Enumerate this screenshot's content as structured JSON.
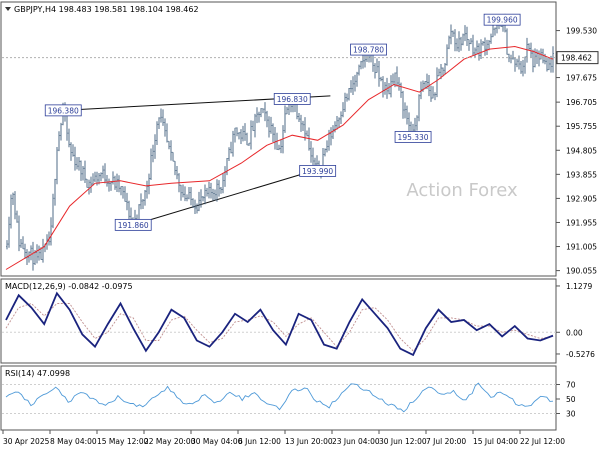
{
  "chart_data": [
    {
      "type": "candlestick",
      "panel": "price",
      "header": "GBPJPY,H4  198.483 198.581 198.104 198.462",
      "watermark": "Action Forex",
      "ylim": [
        190.0,
        200.5
      ],
      "y_ticks": [
        "199.530",
        "198.462",
        "197.675",
        "196.705",
        "195.755",
        "194.805",
        "193.855",
        "192.905",
        "191.955",
        "191.005",
        "190.055"
      ],
      "current_price": "198.462",
      "price_path": [
        {
          "t": "30 Apr 2025",
          "v": 191.0
        },
        {
          "t": "1 May",
          "v": 193.4
        },
        {
          "t": "2 May",
          "v": 191.2
        },
        {
          "t": "5 May",
          "v": 190.4
        },
        {
          "t": "7 May",
          "v": 191.3
        },
        {
          "t": "8 May",
          "v": 195.0
        },
        {
          "t": "9 May",
          "v": 196.38
        },
        {
          "t": "10 May",
          "v": 194.8
        },
        {
          "t": "13 May",
          "v": 193.5
        },
        {
          "t": "15 May",
          "v": 193.9
        },
        {
          "t": "18 May",
          "v": 193.3
        },
        {
          "t": "20 May",
          "v": 191.86
        },
        {
          "t": "22 May",
          "v": 193.2
        },
        {
          "t": "24 May",
          "v": 196.3
        },
        {
          "t": "26 May",
          "v": 194.4
        },
        {
          "t": "28 May",
          "v": 193.0
        },
        {
          "t": "30 May",
          "v": 192.7
        },
        {
          "t": "3 Jun",
          "v": 193.5
        },
        {
          "t": "5 Jun",
          "v": 195.6
        },
        {
          "t": "7 Jun",
          "v": 195.2
        },
        {
          "t": "9 Jun",
          "v": 196.4
        },
        {
          "t": "11 Jun",
          "v": 195.5
        },
        {
          "t": "12 Jun",
          "v": 194.8
        },
        {
          "t": "13 Jun",
          "v": 196.3
        },
        {
          "t": "14 Jun",
          "v": 196.83
        },
        {
          "t": "16 Jun",
          "v": 195.7
        },
        {
          "t": "17 Jun",
          "v": 194.4
        },
        {
          "t": "18 Jun",
          "v": 193.99
        },
        {
          "t": "20 Jun",
          "v": 195.4
        },
        {
          "t": "22 Jun",
          "v": 196.6
        },
        {
          "t": "24 Jun",
          "v": 197.6
        },
        {
          "t": "25 Jun",
          "v": 198.2
        },
        {
          "t": "26 Jun",
          "v": 198.78
        },
        {
          "t": "27 Jun",
          "v": 198.0
        },
        {
          "t": "29 Jun",
          "v": 197.0
        },
        {
          "t": "30 Jun",
          "v": 197.9
        },
        {
          "t": "2 Jul",
          "v": 196.1
        },
        {
          "t": "3 Jul",
          "v": 195.33
        },
        {
          "t": "4 Jul",
          "v": 196.9
        },
        {
          "t": "5 Jul",
          "v": 197.6
        },
        {
          "t": "6 Jul",
          "v": 196.8
        },
        {
          "t": "7 Jul",
          "v": 197.7
        },
        {
          "t": "8 Jul",
          "v": 198.3
        },
        {
          "t": "9 Jul",
          "v": 199.6
        },
        {
          "t": "10 Jul",
          "v": 198.9
        },
        {
          "t": "11 Jul",
          "v": 199.4
        },
        {
          "t": "13 Jul",
          "v": 198.7
        },
        {
          "t": "15 Jul",
          "v": 199.2
        },
        {
          "t": "17 Jul",
          "v": 199.96
        },
        {
          "t": "18 Jul",
          "v": 198.5
        },
        {
          "t": "20 Jul",
          "v": 198.0
        },
        {
          "t": "21 Jul",
          "v": 198.9
        },
        {
          "t": "22 Jul",
          "v": 198.2
        },
        {
          "t": "23 Jul",
          "v": 198.6
        },
        {
          "t": "24 Jul",
          "v": 197.9
        },
        {
          "t": "25 Jul",
          "v": 198.462
        }
      ],
      "ma_path": [
        {
          "t": "30 Apr 2025",
          "v": 190.1
        },
        {
          "t": "6 May",
          "v": 191.0
        },
        {
          "t": "10 May",
          "v": 192.6
        },
        {
          "t": "14 May",
          "v": 193.5
        },
        {
          "t": "18 May",
          "v": 193.6
        },
        {
          "t": "22 May",
          "v": 193.4
        },
        {
          "t": "26 May",
          "v": 193.5
        },
        {
          "t": "1 Jun",
          "v": 193.6
        },
        {
          "t": "6 Jun",
          "v": 194.3
        },
        {
          "t": "10 Jun",
          "v": 195.0
        },
        {
          "t": "14 Jun",
          "v": 195.4
        },
        {
          "t": "18 Jun",
          "v": 195.2
        },
        {
          "t": "22 Jun",
          "v": 195.8
        },
        {
          "t": "26 Jun",
          "v": 196.8
        },
        {
          "t": "30 Jun",
          "v": 197.4
        },
        {
          "t": "4 Jul",
          "v": 197.1
        },
        {
          "t": "7 Jul",
          "v": 197.6
        },
        {
          "t": "11 Jul",
          "v": 198.4
        },
        {
          "t": "15 Jul",
          "v": 198.8
        },
        {
          "t": "19 Jul",
          "v": 198.9
        },
        {
          "t": "22 Jul",
          "v": 198.7
        },
        {
          "t": "25 Jul",
          "v": 198.4
        }
      ],
      "annotations": [
        {
          "label": "196.380",
          "t": "9 May",
          "v": 196.38
        },
        {
          "label": "196.830",
          "t": "14 Jun",
          "v": 196.83
        },
        {
          "label": "193.990",
          "t": "18 Jun",
          "v": 193.99
        },
        {
          "label": "191.860",
          "t": "20 May",
          "v": 191.86
        },
        {
          "label": "198.780",
          "t": "26 Jun",
          "v": 198.78
        },
        {
          "label": "195.330",
          "t": "3 Jul",
          "v": 195.33
        },
        {
          "label": "199.960",
          "t": "17 Jul",
          "v": 199.96
        }
      ],
      "trendlines": [
        {
          "from": {
            "t": "9 May",
            "v": 196.38
          },
          "to": {
            "t": "20 Jun",
            "v": 196.95
          }
        },
        {
          "from": {
            "t": "20 May",
            "v": 191.86
          },
          "to": {
            "t": "20 Jun",
            "v": 194.2
          }
        }
      ],
      "x_ticks": [
        "30 Apr 2025",
        "8 May 04:00",
        "15 May 12:00",
        "22 May 20:00",
        "30 May 04:00",
        "6 Jun 12:00",
        "13 Jun 20:00",
        "23 Jun 04:00",
        "30 Jun 12:00",
        "7 Jul 20:00",
        "15 Jul 04:00",
        "22 Jul 12:00"
      ]
    },
    {
      "type": "line",
      "panel": "macd",
      "header": "MACD(12,26,9) -0.0842 -0.0975",
      "y_ticks": [
        "1.1279",
        "0.00",
        "-0.5276"
      ],
      "ylim": [
        -0.65,
        1.2
      ],
      "series": [
        {
          "role": "macd",
          "values": [
            0.3,
            0.9,
            0.6,
            0.2,
            0.95,
            0.55,
            -0.05,
            -0.35,
            0.2,
            0.7,
            0.1,
            -0.45,
            0.0,
            0.55,
            0.35,
            -0.2,
            -0.35,
            0.0,
            0.45,
            0.25,
            0.55,
            0.05,
            -0.3,
            0.45,
            0.3,
            -0.3,
            -0.4,
            0.25,
            0.8,
            0.45,
            0.1,
            -0.4,
            -0.55,
            0.1,
            0.55,
            0.25,
            0.3,
            0.05,
            0.2,
            -0.1,
            0.15,
            -0.15,
            -0.2,
            -0.08
          ]
        },
        {
          "role": "signal",
          "values": [
            0.1,
            0.6,
            0.7,
            0.4,
            0.7,
            0.7,
            0.25,
            -0.15,
            0.0,
            0.45,
            0.35,
            -0.2,
            -0.2,
            0.3,
            0.4,
            0.05,
            -0.25,
            -0.15,
            0.25,
            0.3,
            0.4,
            0.25,
            -0.1,
            0.2,
            0.35,
            0.0,
            -0.35,
            0.0,
            0.55,
            0.6,
            0.3,
            -0.15,
            -0.45,
            -0.15,
            0.35,
            0.35,
            0.3,
            0.15,
            0.15,
            0.0,
            0.05,
            -0.05,
            -0.15,
            -0.1
          ]
        }
      ]
    },
    {
      "type": "line",
      "panel": "rsi",
      "header": "RSI(14) 47.0998",
      "y_ticks": [
        "70",
        "50",
        "30"
      ],
      "ylim": [
        10,
        90
      ],
      "levels": [
        70,
        30
      ],
      "series": [
        {
          "role": "rsi",
          "values": [
            50,
            62,
            40,
            55,
            68,
            45,
            60,
            48,
            40,
            52,
            45,
            38,
            55,
            66,
            48,
            42,
            55,
            45,
            62,
            50,
            58,
            44,
            38,
            60,
            66,
            48,
            40,
            58,
            72,
            62,
            52,
            40,
            35,
            50,
            68,
            58,
            60,
            48,
            72,
            55,
            58,
            45,
            40,
            52,
            47
          ]
        }
      ]
    }
  ]
}
